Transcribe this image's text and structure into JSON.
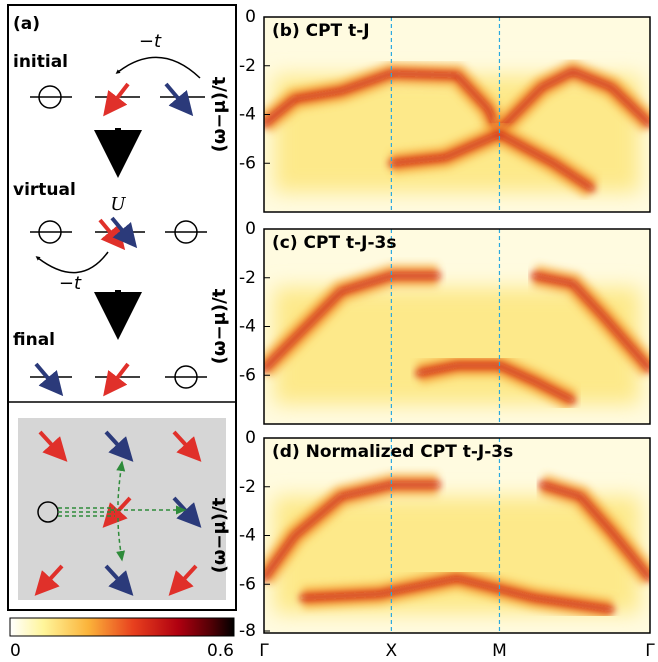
{
  "panel_a": {
    "label": "(a)",
    "steps": [
      "initial",
      "virtual",
      "final"
    ],
    "hops": [
      "−t",
      "−t"
    ],
    "interaction": "U"
  },
  "colorbar": {
    "ticks": [
      0,
      0.6
    ]
  },
  "spectra": {
    "y_label": "(ω−μ)/t",
    "ylim": [
      -8,
      0
    ],
    "x_labels": [
      "Γ",
      "X",
      "M",
      "Γ"
    ],
    "panels": [
      {
        "title": "(b) CPT t-J",
        "yticks": [
          0,
          -2,
          -4,
          -6
        ]
      },
      {
        "title": "(c) CPT t-J-3s",
        "yticks": [
          0,
          -2,
          -4,
          -6
        ]
      },
      {
        "title": "(d) Normalized CPT t-J-3s",
        "yticks": [
          0,
          -2,
          -4,
          -6,
          -8
        ]
      }
    ]
  }
}
